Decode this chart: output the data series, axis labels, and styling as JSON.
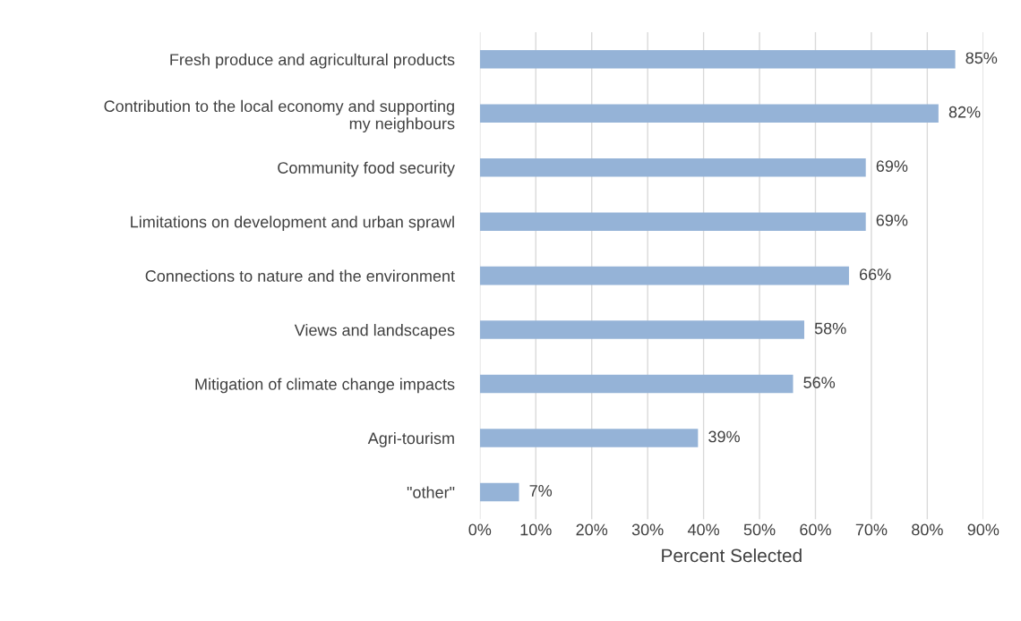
{
  "chart_data": {
    "type": "bar",
    "orientation": "horizontal",
    "xlabel": "Percent Selected",
    "categories": [
      "Fresh produce and agricultural products",
      "Contribution to the local economy and supporting\nmy neighbours",
      "Community food security",
      "Limitations on development and urban sprawl",
      "Connections to nature and the environment",
      "Views and landscapes",
      "Mitigation of climate change impacts",
      "Agri-tourism",
      "\"other\""
    ],
    "values": [
      85,
      82,
      69,
      69,
      66,
      58,
      56,
      39,
      7
    ],
    "value_labels": [
      "85%",
      "82%",
      "69%",
      "69%",
      "66%",
      "58%",
      "56%",
      "39%",
      "7%"
    ],
    "color": "#95b3d7",
    "xlim": [
      0,
      90
    ],
    "xticks": [
      {
        "value": 0,
        "label": "0%"
      },
      {
        "value": 10,
        "label": "10%"
      },
      {
        "value": 20,
        "label": "20%"
      },
      {
        "value": 30,
        "label": "30%"
      },
      {
        "value": 40,
        "label": "40%"
      },
      {
        "value": 50,
        "label": "50%"
      },
      {
        "value": 60,
        "label": "60%"
      },
      {
        "value": 70,
        "label": "70%"
      },
      {
        "value": 80,
        "label": "80%"
      },
      {
        "value": 90,
        "label": "90%"
      }
    ],
    "grid": "x",
    "legend": false
  }
}
